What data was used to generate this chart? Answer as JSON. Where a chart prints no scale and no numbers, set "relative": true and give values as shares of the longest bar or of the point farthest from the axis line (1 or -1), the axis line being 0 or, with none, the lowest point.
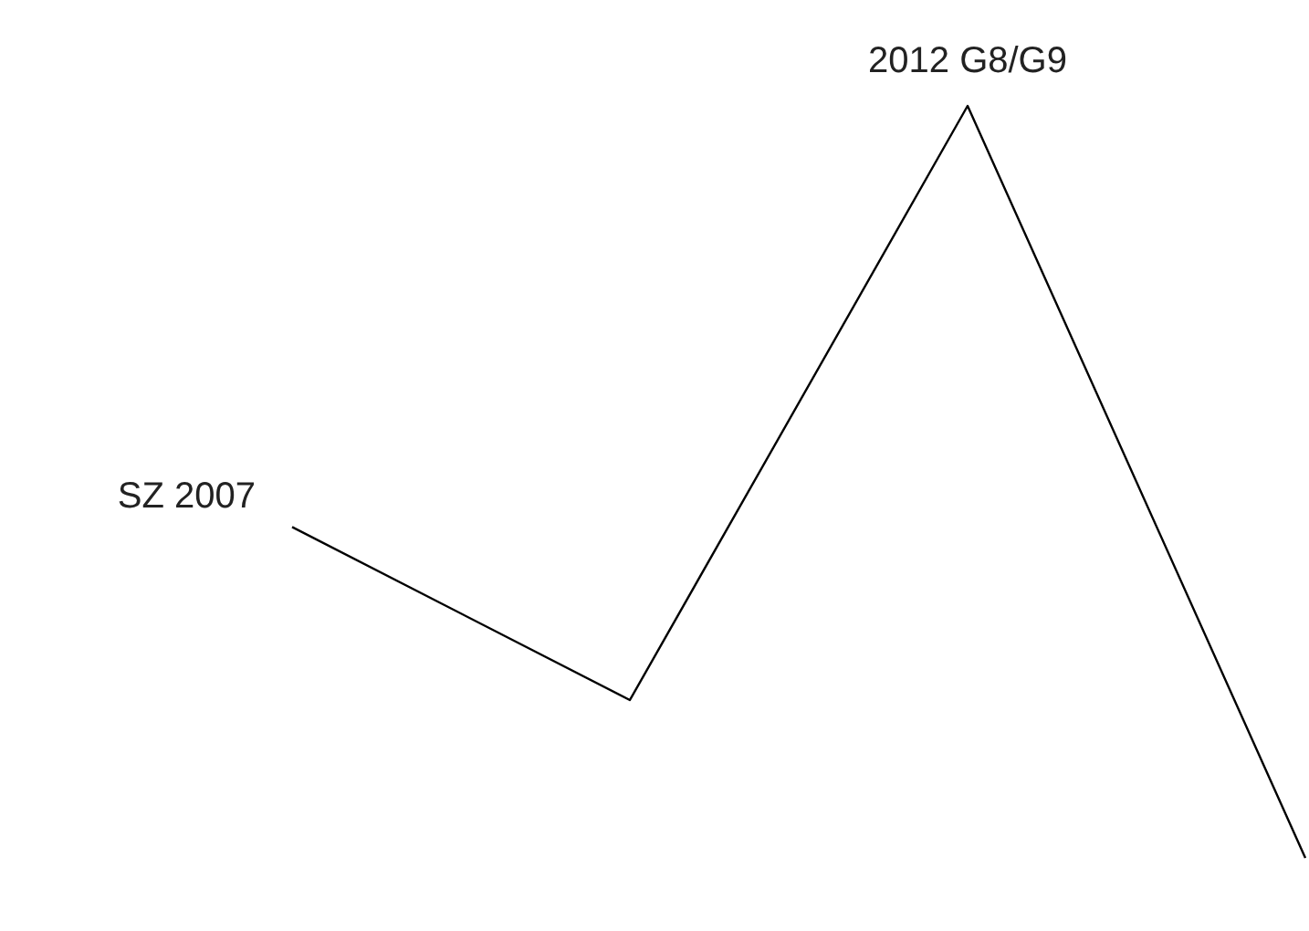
{
  "chart_data": {
    "type": "line",
    "relative": true,
    "categories": [
      "SZ 2007",
      null,
      "2012 G8/G9",
      null
    ],
    "series": [
      {
        "color": "#000000",
        "values": [
          0.44,
          0.21,
          1,
          0
        ]
      }
    ],
    "legend": false,
    "marker": "none",
    "line_style": "solid"
  }
}
